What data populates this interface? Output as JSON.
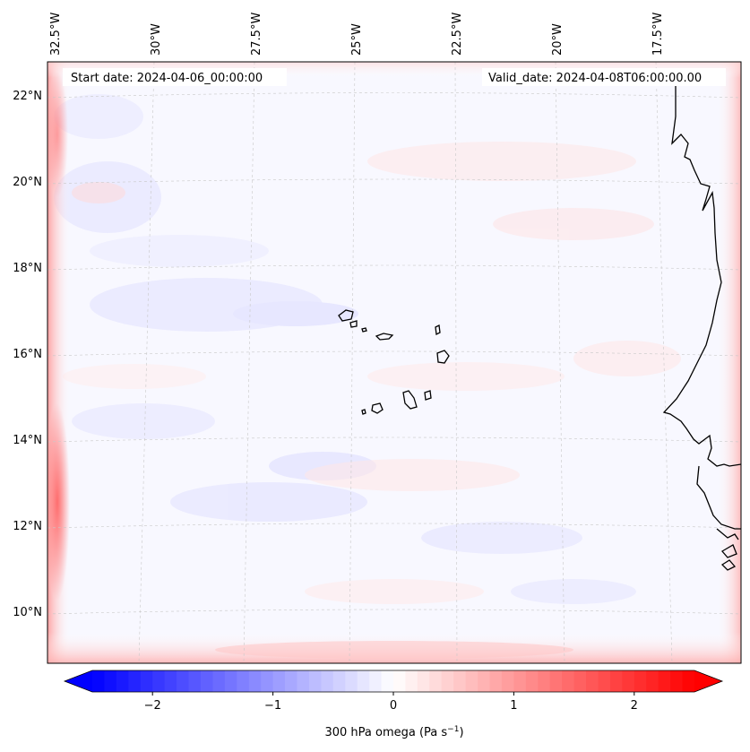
{
  "map": {
    "annotation_left": "Start date: 2024-04-06_00:00:00",
    "annotation_right": "Valid_date: 2024-04-08T06:00:00.00",
    "lon_labels": [
      "32.5°W",
      "30°W",
      "27.5°W",
      "25°W",
      "22.5°W",
      "20°W",
      "17.5°W"
    ],
    "lat_labels": [
      "22°N",
      "20°N",
      "18°N",
      "16°N",
      "14°N",
      "12°N",
      "10°N"
    ]
  },
  "colorbar": {
    "ticks": [
      "−2",
      "−1",
      "0",
      "1",
      "2"
    ],
    "label": "300 hPa omega (Pa s",
    "label_sup": "−1",
    "label_close": ")",
    "min": -2.5,
    "max": 2.5
  },
  "colors": {
    "neg": "#0000ff",
    "pos": "#ff0000",
    "coast": "#000000"
  }
}
